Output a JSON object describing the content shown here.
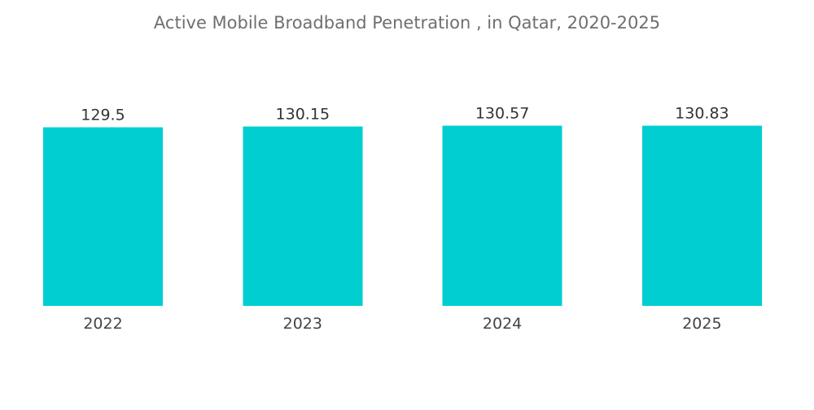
{
  "chart_data": {
    "type": "bar",
    "title": "Active Mobile Broadband Penetration , in Qatar, 2020-2025",
    "categories": [
      "2022",
      "2023",
      "2024",
      "2025"
    ],
    "values": [
      129.5,
      130.15,
      130.57,
      130.83
    ],
    "value_labels": [
      "129.5",
      "130.15",
      "130.57",
      "130.83"
    ],
    "xlabel": "",
    "ylabel": "",
    "ylim": [
      0,
      131
    ],
    "grid": false,
    "legend": "none",
    "bar_color": "#00CED1"
  }
}
